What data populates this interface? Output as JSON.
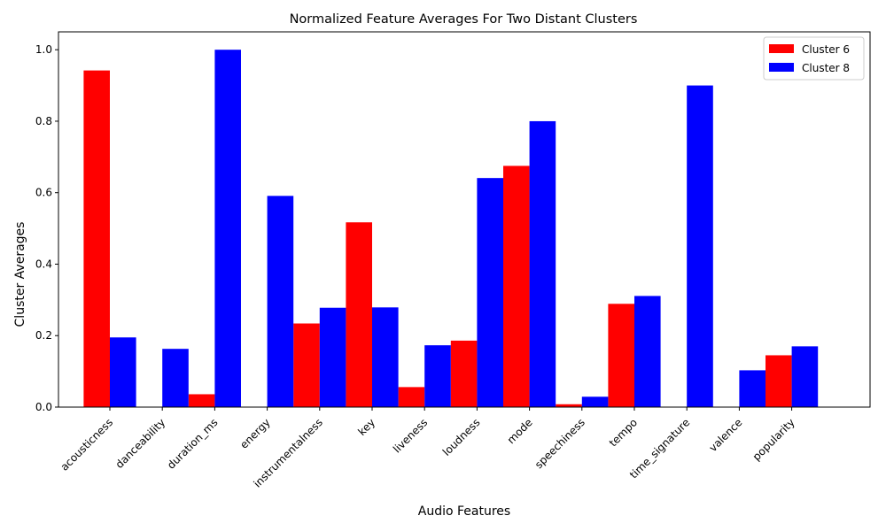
{
  "chart_data": {
    "type": "bar",
    "title": "Normalized Feature Averages For Two Distant Clusters",
    "xlabel": "Audio Features",
    "ylabel": "Cluster Averages",
    "ylim": [
      0,
      1.05
    ],
    "yticks": [
      "0.0",
      "0.2",
      "0.4",
      "0.6",
      "0.8",
      "1.0"
    ],
    "grid": false,
    "legend_position": "top-right",
    "categories": [
      "acousticness",
      "danceability",
      "duration_ms",
      "energy",
      "instrumentalness",
      "key",
      "liveness",
      "loudness",
      "mode",
      "speechiness",
      "tempo",
      "time_signature",
      "valence",
      "popularity"
    ],
    "series": [
      {
        "name": "Cluster 6",
        "color": "#ff0000",
        "values": [
          0.942,
          0.0,
          0.036,
          0.0,
          0.234,
          0.517,
          0.056,
          0.186,
          0.675,
          0.008,
          0.289,
          0.0,
          0.0,
          0.145
        ]
      },
      {
        "name": "Cluster 8",
        "color": "#0000ff",
        "values": [
          0.195,
          0.163,
          1.0,
          0.591,
          0.278,
          0.279,
          0.173,
          0.641,
          0.8,
          0.029,
          0.311,
          0.9,
          0.103,
          0.17
        ]
      }
    ]
  }
}
